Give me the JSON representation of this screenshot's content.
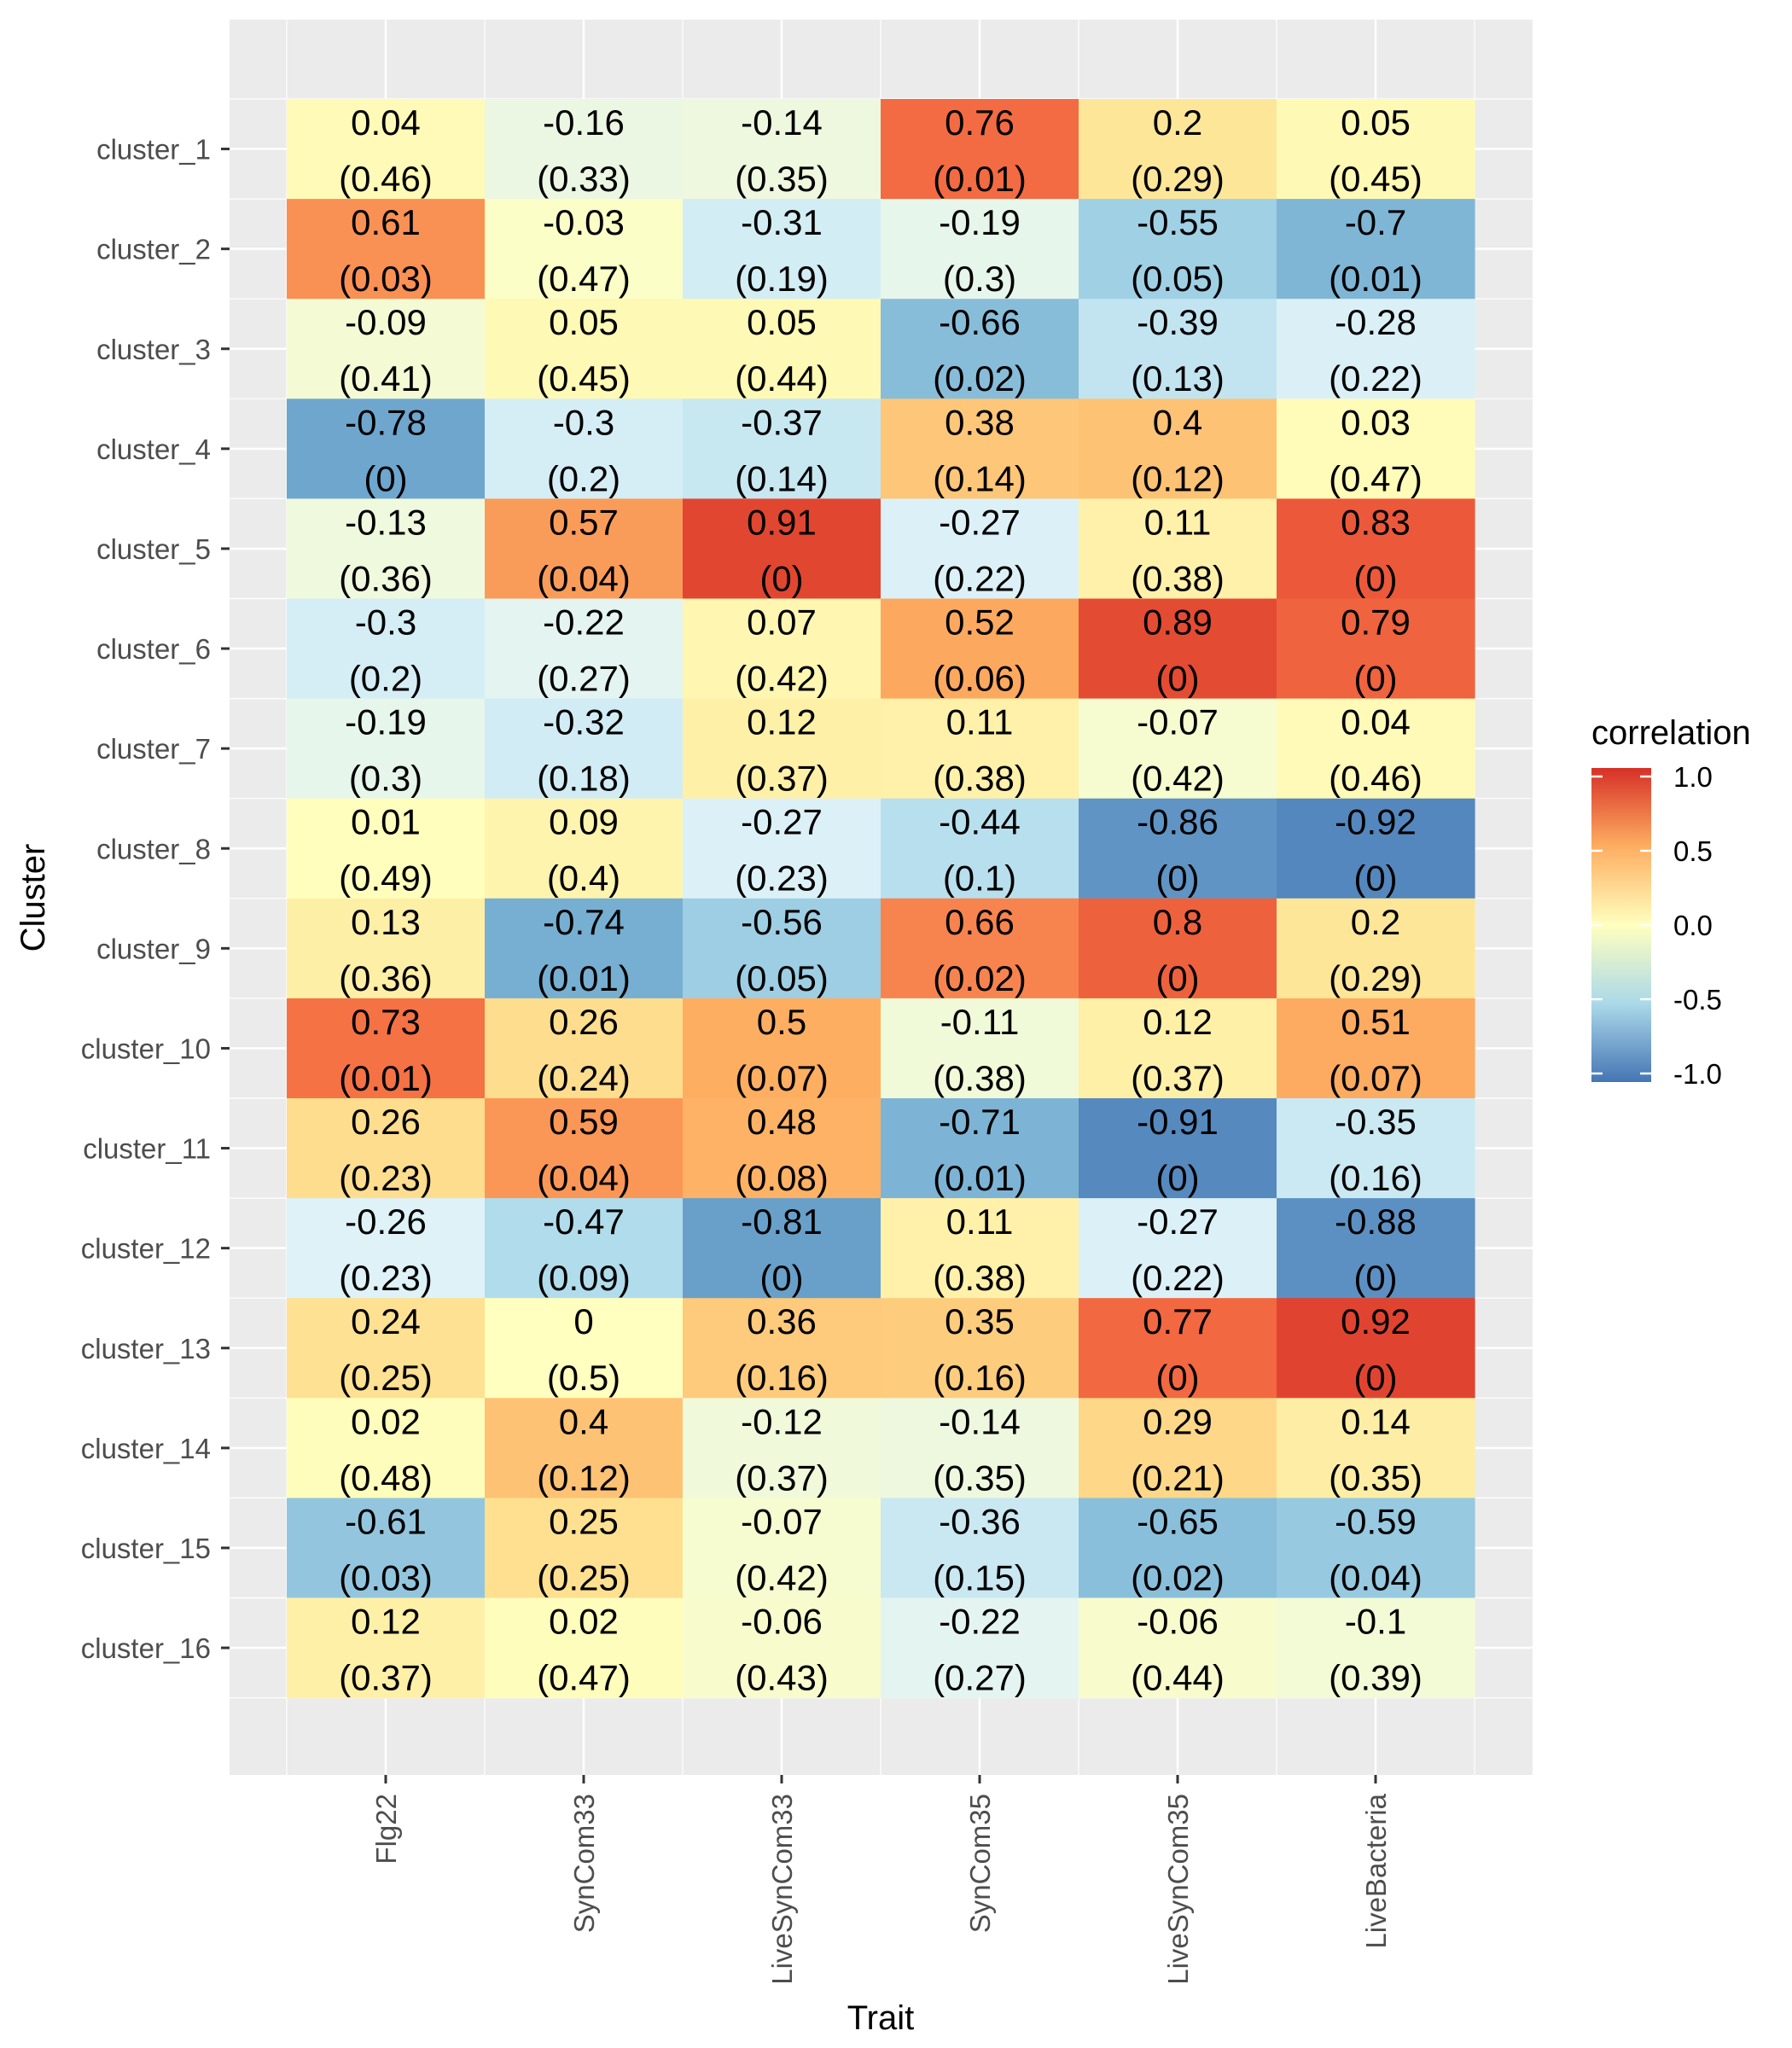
{
  "chart_data": {
    "type": "heatmap",
    "xlabel": "Trait",
    "ylabel": "Cluster",
    "x_categories": [
      "Flg22",
      "SynCom33",
      "LiveSynCom33",
      "SynCom35",
      "LiveSynCom35",
      "LiveBacteria"
    ],
    "y_categories": [
      "cluster_1",
      "cluster_2",
      "cluster_3",
      "cluster_4",
      "cluster_5",
      "cluster_6",
      "cluster_7",
      "cluster_8",
      "cluster_9",
      "cluster_10",
      "cluster_11",
      "cluster_12",
      "cluster_13",
      "cluster_14",
      "cluster_15",
      "cluster_16"
    ],
    "correlation": [
      [
        "0.04",
        "-0.16",
        "-0.14",
        "0.76",
        "0.2",
        "0.05"
      ],
      [
        "0.61",
        "-0.03",
        "-0.31",
        "-0.19",
        "-0.55",
        "-0.7"
      ],
      [
        "-0.09",
        "0.05",
        "0.05",
        "-0.66",
        "-0.39",
        "-0.28"
      ],
      [
        "-0.78",
        "-0.3",
        "-0.37",
        "0.38",
        "0.4",
        "0.03"
      ],
      [
        "-0.13",
        "0.57",
        "0.91",
        "-0.27",
        "0.11",
        "0.83"
      ],
      [
        "-0.3",
        "-0.22",
        "0.07",
        "0.52",
        "0.89",
        "0.79"
      ],
      [
        "-0.19",
        "-0.32",
        "0.12",
        "0.11",
        "-0.07",
        "0.04"
      ],
      [
        "0.01",
        "0.09",
        "-0.27",
        "-0.44",
        "-0.86",
        "-0.92"
      ],
      [
        "0.13",
        "-0.74",
        "-0.56",
        "0.66",
        "0.8",
        "0.2"
      ],
      [
        "0.73",
        "0.26",
        "0.5",
        "-0.11",
        "0.12",
        "0.51"
      ],
      [
        "0.26",
        "0.59",
        "0.48",
        "-0.71",
        "-0.91",
        "-0.35"
      ],
      [
        "-0.26",
        "-0.47",
        "-0.81",
        "0.11",
        "-0.27",
        "-0.88"
      ],
      [
        "0.24",
        "0",
        "0.36",
        "0.35",
        "0.77",
        "0.92"
      ],
      [
        "0.02",
        "0.4",
        "-0.12",
        "-0.14",
        "0.29",
        "0.14"
      ],
      [
        "-0.61",
        "0.25",
        "-0.07",
        "-0.36",
        "-0.65",
        "-0.59"
      ],
      [
        "0.12",
        "0.02",
        "-0.06",
        "-0.22",
        "-0.06",
        "-0.1"
      ]
    ],
    "pvalue": [
      [
        "(0.46)",
        "(0.33)",
        "(0.35)",
        "(0.01)",
        "(0.29)",
        "(0.45)"
      ],
      [
        "(0.03)",
        "(0.47)",
        "(0.19)",
        "(0.3)",
        "(0.05)",
        "(0.01)"
      ],
      [
        "(0.41)",
        "(0.45)",
        "(0.44)",
        "(0.02)",
        "(0.13)",
        "(0.22)"
      ],
      [
        "(0)",
        "(0.2)",
        "(0.14)",
        "(0.14)",
        "(0.12)",
        "(0.47)"
      ],
      [
        "(0.36)",
        "(0.04)",
        "(0)",
        "(0.22)",
        "(0.38)",
        "(0)"
      ],
      [
        "(0.2)",
        "(0.27)",
        "(0.42)",
        "(0.06)",
        "(0)",
        "(0)"
      ],
      [
        "(0.3)",
        "(0.18)",
        "(0.37)",
        "(0.38)",
        "(0.42)",
        "(0.46)"
      ],
      [
        "(0.49)",
        "(0.4)",
        "(0.23)",
        "(0.1)",
        "(0)",
        "(0)"
      ],
      [
        "(0.36)",
        "(0.01)",
        "(0.05)",
        "(0.02)",
        "(0)",
        "(0.29)"
      ],
      [
        "(0.01)",
        "(0.24)",
        "(0.07)",
        "(0.38)",
        "(0.37)",
        "(0.07)"
      ],
      [
        "(0.23)",
        "(0.04)",
        "(0.08)",
        "(0.01)",
        "(0)",
        "(0.16)"
      ],
      [
        "(0.23)",
        "(0.09)",
        "(0)",
        "(0.38)",
        "(0.22)",
        "(0)"
      ],
      [
        "(0.25)",
        "(0.5)",
        "(0.16)",
        "(0.16)",
        "(0)",
        "(0)"
      ],
      [
        "(0.48)",
        "(0.12)",
        "(0.37)",
        "(0.35)",
        "(0.21)",
        "(0.35)"
      ],
      [
        "(0.03)",
        "(0.25)",
        "(0.42)",
        "(0.15)",
        "(0.02)",
        "(0.04)"
      ],
      [
        "(0.37)",
        "(0.47)",
        "(0.43)",
        "(0.27)",
        "(0.44)",
        "(0.39)"
      ]
    ],
    "legend": {
      "title": "correlation",
      "position": "right",
      "range": [
        -1.0,
        1.0
      ],
      "ticks": [
        1.0,
        0.5,
        0.0,
        -0.5,
        -1.0
      ],
      "tick_labels": [
        "1.0",
        "0.5",
        "0.0",
        "-0.5",
        "-1.0"
      ]
    },
    "colors": {
      "palette": "RdYlBu (reversed)",
      "low": "#4575b4",
      "mid": "#ffffbf",
      "high": "#d73027",
      "panel_background": "#ebebeb",
      "grid": "#ffffff"
    }
  }
}
